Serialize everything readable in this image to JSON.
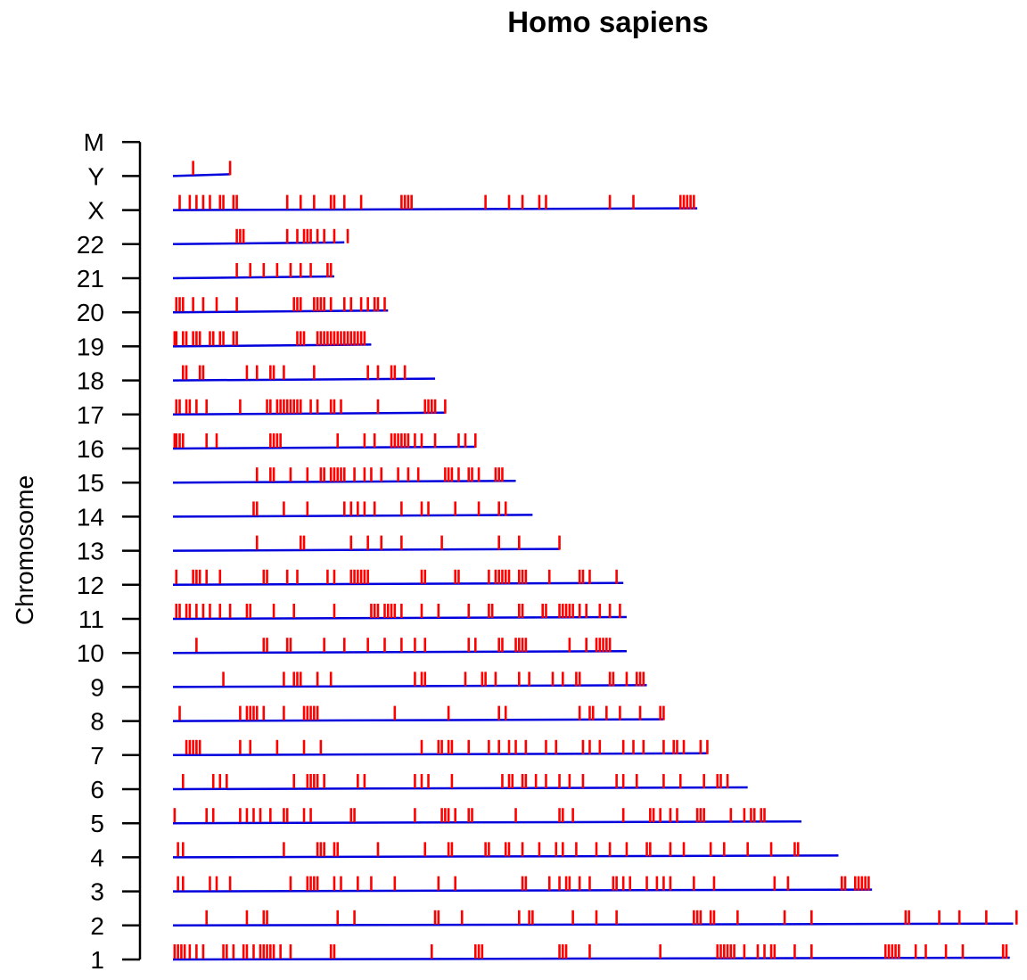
{
  "chart_data": {
    "type": "chromosome-map",
    "title": "Homo sapiens",
    "ylabel": "Chromosome",
    "xlabel": "",
    "colors": {
      "chromosome_line": "#0000dd",
      "marker": "#ff0000",
      "axis": "#000000",
      "text": "#000000"
    },
    "grid": false,
    "legend": "none",
    "x_units": "Mb",
    "x_range": [
      0,
      250
    ],
    "tick_labels": [
      "1",
      "2",
      "3",
      "4",
      "5",
      "6",
      "7",
      "8",
      "9",
      "10",
      "11",
      "12",
      "13",
      "14",
      "15",
      "16",
      "17",
      "18",
      "19",
      "20",
      "21",
      "22",
      "X",
      "Y",
      "M"
    ],
    "chromosomes": [
      {
        "name": "1",
        "length": 249,
        "markers": [
          0.5,
          1.5,
          2.5,
          3.5,
          5,
          7,
          9,
          15,
          16,
          18,
          21,
          22,
          24,
          26,
          27,
          28,
          29,
          30,
          32,
          35,
          47,
          48,
          77,
          90,
          91,
          92,
          115,
          116,
          117,
          124,
          145,
          162,
          163,
          164,
          165,
          166,
          167,
          170,
          174,
          176,
          178,
          179,
          185,
          190,
          212,
          213,
          214,
          215,
          216,
          221,
          224,
          230,
          235,
          247,
          248
        ]
      },
      {
        "name": "2",
        "length": 250,
        "markers": [
          10,
          22,
          27,
          28,
          49,
          54,
          78,
          79,
          86,
          103,
          106,
          107,
          119,
          126,
          132,
          155,
          156,
          157,
          160,
          161,
          168,
          182,
          190,
          218,
          219,
          228,
          234,
          242,
          251
        ]
      },
      {
        "name": "3",
        "length": 208,
        "markers": [
          1.5,
          3,
          11,
          13,
          17,
          35,
          40,
          41,
          42,
          43,
          48,
          50,
          55,
          59,
          66,
          79,
          84,
          104,
          105,
          112,
          115,
          117,
          118,
          121,
          124,
          131,
          132,
          134,
          136,
          141,
          144,
          146,
          148,
          155,
          161,
          179,
          183,
          199,
          200,
          203,
          204,
          205,
          206,
          207
        ]
      },
      {
        "name": "4",
        "length": 198,
        "markers": [
          1.5,
          3,
          33,
          43,
          44,
          45,
          48,
          49,
          61,
          75,
          82,
          83,
          93,
          94,
          99,
          100,
          104,
          109,
          114,
          116,
          120,
          126,
          130,
          135,
          141,
          142,
          148,
          152,
          160,
          164,
          171,
          178,
          185,
          186
        ]
      },
      {
        "name": "5",
        "length": 187,
        "markers": [
          0.5,
          10,
          12,
          20,
          22,
          24,
          26,
          29,
          33,
          34,
          39,
          41,
          53,
          54,
          72,
          80,
          81,
          82,
          84,
          88,
          89,
          102,
          115,
          116,
          119,
          134,
          142,
          143,
          145,
          148,
          150,
          156,
          157,
          158,
          166,
          170,
          172,
          173,
          175,
          176
        ]
      },
      {
        "name": "6",
        "length": 171,
        "markers": [
          3,
          12,
          14,
          16,
          36,
          40,
          41,
          42,
          43,
          45,
          55,
          57,
          72,
          74,
          76,
          83,
          98,
          100,
          101,
          104,
          105,
          108,
          111,
          115,
          118,
          122,
          132,
          134,
          138,
          146,
          151,
          158,
          162,
          163,
          165
        ]
      },
      {
        "name": "7",
        "length": 159,
        "markers": [
          4,
          5,
          6,
          7,
          8,
          20,
          23,
          31,
          39,
          44,
          74,
          79,
          80,
          82,
          83,
          88,
          94,
          97,
          100,
          102,
          105,
          111,
          114,
          122,
          124,
          127,
          134,
          137,
          140,
          146,
          149,
          150,
          152,
          157,
          159
        ]
      },
      {
        "name": "8",
        "length": 146,
        "markers": [
          2,
          20,
          22,
          23,
          24,
          25,
          27,
          33,
          39,
          40,
          41,
          42,
          43,
          66,
          82,
          97,
          99,
          121,
          124,
          125,
          129,
          133,
          139,
          145,
          146
        ]
      },
      {
        "name": "9",
        "length": 141,
        "markers": [
          15,
          33,
          36,
          37,
          38,
          43,
          47,
          72,
          74,
          75,
          87,
          92,
          93,
          96,
          103,
          106,
          113,
          116,
          120,
          121,
          130,
          131,
          135,
          138,
          139,
          140
        ]
      },
      {
        "name": "10",
        "length": 135,
        "markers": [
          7,
          27,
          28,
          34,
          35,
          45,
          51,
          58,
          63,
          68,
          72,
          75,
          88,
          90,
          97,
          98,
          102,
          103,
          104,
          105,
          118,
          123,
          126,
          127,
          128,
          129,
          130
        ]
      },
      {
        "name": "11",
        "length": 135,
        "markers": [
          1,
          2,
          4,
          5,
          7,
          9,
          11,
          14,
          17,
          22,
          23,
          30,
          36,
          48,
          59,
          60,
          61,
          63,
          64,
          65,
          66,
          68,
          74,
          79,
          88,
          94,
          95,
          103,
          104,
          110,
          111,
          115,
          116,
          117,
          118,
          119,
          121,
          123,
          127,
          130,
          133
        ]
      },
      {
        "name": "12",
        "length": 134,
        "markers": [
          1,
          6,
          7,
          8,
          10,
          14,
          27,
          28,
          34,
          37,
          46,
          48,
          53,
          54,
          55,
          56,
          57,
          58,
          74,
          75,
          84,
          85,
          94,
          96,
          97,
          98,
          99,
          100,
          103,
          104,
          105,
          112,
          121,
          122,
          124,
          132
        ]
      },
      {
        "name": "13",
        "length": 115,
        "markers": [
          25,
          38,
          39,
          53,
          58,
          62,
          68,
          80,
          97,
          103,
          115
        ]
      },
      {
        "name": "14",
        "length": 107,
        "markers": [
          24,
          25,
          33,
          40,
          51,
          53,
          55,
          57,
          60,
          68,
          74,
          76,
          84,
          91,
          97,
          99
        ]
      },
      {
        "name": "15",
        "length": 102,
        "markers": [
          25,
          29,
          30,
          35,
          40,
          44,
          45,
          47,
          48,
          49,
          50,
          51,
          54,
          57,
          59,
          62,
          67,
          70,
          73,
          81,
          82,
          83,
          85,
          88,
          89,
          91,
          96,
          97,
          98
        ]
      },
      {
        "name": "16",
        "length": 90,
        "markers": [
          0.5,
          1,
          2,
          3,
          10,
          13,
          29,
          30,
          31,
          32,
          49,
          57,
          60,
          65,
          66,
          67,
          68,
          69,
          70,
          72,
          74,
          78,
          85,
          87,
          90
        ]
      },
      {
        "name": "17",
        "length": 81,
        "markers": [
          1,
          2,
          4,
          5,
          7,
          10,
          20,
          28,
          29,
          31,
          32,
          33,
          34,
          35,
          36,
          37,
          38,
          41,
          43,
          47,
          48,
          50,
          61,
          75,
          76,
          77,
          78,
          81
        ]
      },
      {
        "name": "18",
        "length": 78,
        "markers": [
          3,
          4,
          8,
          9,
          22,
          25,
          29,
          30,
          33,
          42,
          58,
          61,
          65,
          66,
          69
        ]
      },
      {
        "name": "19",
        "length": 59,
        "markers": [
          0.5,
          1,
          3,
          4,
          6,
          7,
          8,
          11,
          12,
          14,
          15,
          18,
          19,
          37,
          38,
          39,
          43,
          44,
          45,
          46,
          47,
          48,
          49,
          50,
          51,
          52,
          53,
          54,
          55,
          56,
          57
        ]
      },
      {
        "name": "20",
        "length": 64,
        "markers": [
          1,
          2,
          3,
          6,
          9,
          13,
          19,
          36,
          37,
          38,
          42,
          43,
          44,
          45,
          47,
          51,
          53,
          56,
          58,
          60,
          61,
          63
        ]
      },
      {
        "name": "21",
        "length": 48,
        "markers": [
          19,
          23,
          27,
          31,
          35,
          38,
          41,
          46,
          47
        ]
      },
      {
        "name": "22",
        "length": 51,
        "markers": [
          19,
          20,
          21,
          34,
          37,
          39,
          40,
          41,
          43,
          45,
          48,
          52
        ]
      },
      {
        "name": "X",
        "length": 156,
        "markers": [
          2,
          5,
          7,
          9,
          11,
          14,
          15,
          18,
          19,
          34,
          38,
          42,
          47,
          48,
          51,
          56,
          68,
          69,
          70,
          71,
          93,
          100,
          104,
          109,
          111,
          130,
          137,
          151,
          152,
          153,
          154,
          155
        ]
      },
      {
        "name": "Y",
        "length": 17,
        "markers": [
          6,
          17
        ]
      },
      {
        "name": "M",
        "length": 0,
        "markers": []
      }
    ]
  }
}
